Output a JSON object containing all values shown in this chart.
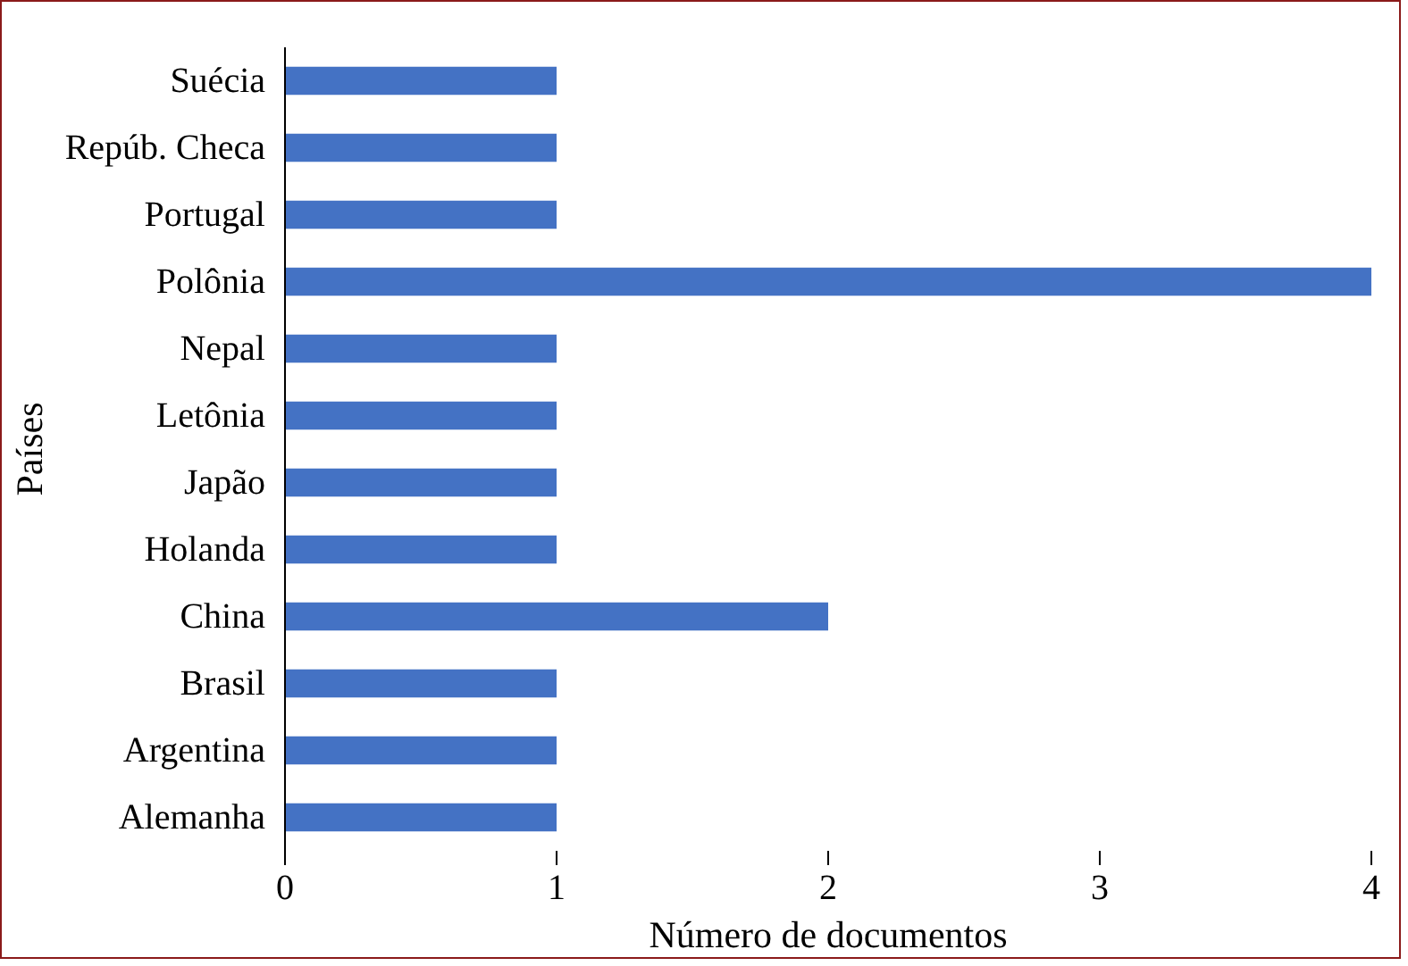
{
  "chart_data": {
    "type": "bar",
    "orientation": "horizontal",
    "xlabel": "Número de documentos",
    "ylabel": "Países",
    "categories": [
      "Suécia",
      "Repúb. Checa",
      "Portugal",
      "Polônia",
      "Nepal",
      "Letônia",
      "Japão",
      "Holanda",
      "China",
      "Brasil",
      "Argentina",
      "Alemanha"
    ],
    "values": [
      1,
      1,
      1,
      4,
      1,
      1,
      1,
      1,
      2,
      1,
      1,
      1
    ],
    "color": "#4472c4",
    "xlim": [
      0,
      4
    ],
    "xticks": [
      0,
      1,
      2,
      3,
      4
    ],
    "grid": false
  }
}
